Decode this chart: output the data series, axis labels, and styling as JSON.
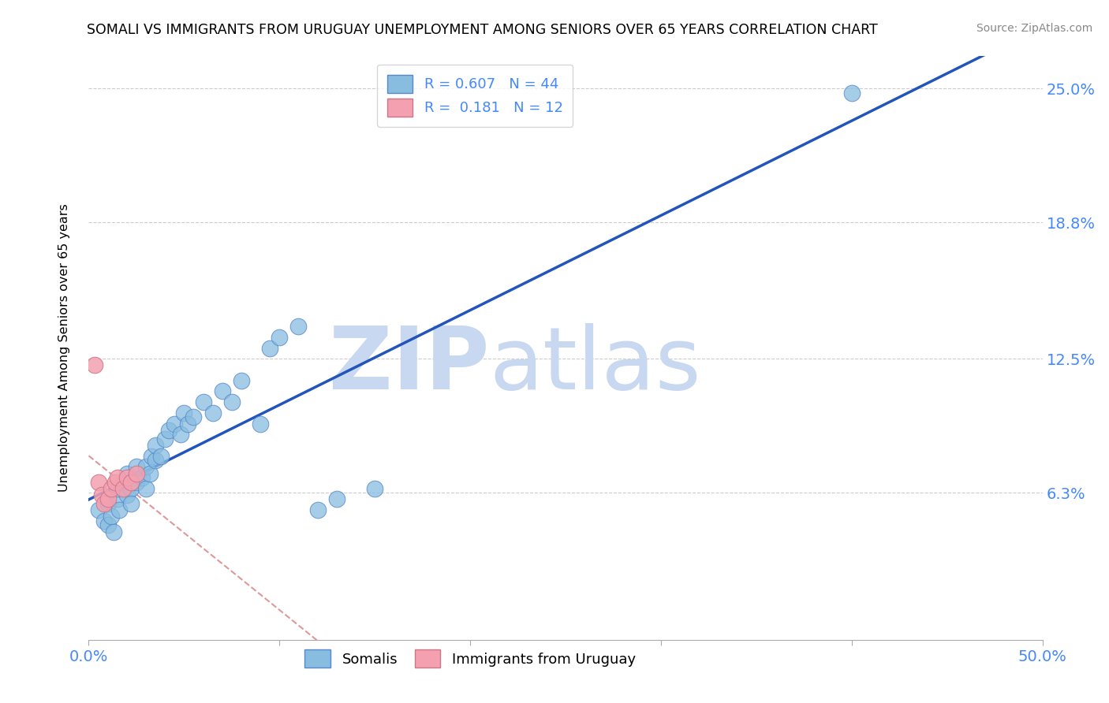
{
  "title": "SOMALI VS IMMIGRANTS FROM URUGUAY UNEMPLOYMENT AMONG SENIORS OVER 65 YEARS CORRELATION CHART",
  "source": "Source: ZipAtlas.com",
  "axis_color": "#4488ff",
  "ylabel": "Unemployment Among Seniors over 65 years",
  "xlim": [
    0.0,
    0.5
  ],
  "ylim": [
    -0.005,
    0.265
  ],
  "xtick_pos": [
    0.0,
    0.1,
    0.2,
    0.3,
    0.4,
    0.5
  ],
  "xtick_labels": [
    "0.0%",
    "",
    "",
    "",
    "",
    "50.0%"
  ],
  "ytick_values": [
    0.063,
    0.125,
    0.188,
    0.25
  ],
  "ytick_labels": [
    "6.3%",
    "12.5%",
    "18.8%",
    "25.0%"
  ],
  "grid_color": "#cccccc",
  "watermark_zip": "ZIP",
  "watermark_atlas": "atlas",
  "watermark_color": "#c8d8f0",
  "blue_color": "#89bde0",
  "pink_color": "#f4a0b0",
  "blue_edge_color": "#5588cc",
  "pink_edge_color": "#cc7788",
  "blue_line_color": "#2255bb",
  "pink_line_color": "#dd9999",
  "legend_blue_label": "R = 0.607   N = 44",
  "legend_pink_label": "R =  0.181   N = 12",
  "somali_x": [
    0.005,
    0.008,
    0.01,
    0.01,
    0.012,
    0.013,
    0.015,
    0.015,
    0.016,
    0.018,
    0.02,
    0.02,
    0.022,
    0.022,
    0.025,
    0.025,
    0.028,
    0.03,
    0.03,
    0.032,
    0.033,
    0.035,
    0.035,
    0.038,
    0.04,
    0.042,
    0.045,
    0.048,
    0.05,
    0.052,
    0.055,
    0.06,
    0.065,
    0.07,
    0.075,
    0.08,
    0.09,
    0.095,
    0.1,
    0.11,
    0.12,
    0.13,
    0.15,
    0.4
  ],
  "somali_y": [
    0.055,
    0.05,
    0.048,
    0.058,
    0.052,
    0.045,
    0.06,
    0.065,
    0.055,
    0.068,
    0.062,
    0.072,
    0.065,
    0.058,
    0.075,
    0.068,
    0.07,
    0.065,
    0.075,
    0.072,
    0.08,
    0.078,
    0.085,
    0.08,
    0.088,
    0.092,
    0.095,
    0.09,
    0.1,
    0.095,
    0.098,
    0.105,
    0.1,
    0.11,
    0.105,
    0.115,
    0.095,
    0.13,
    0.135,
    0.14,
    0.055,
    0.06,
    0.065,
    0.248
  ],
  "uruguay_x": [
    0.003,
    0.005,
    0.007,
    0.008,
    0.01,
    0.012,
    0.014,
    0.015,
    0.018,
    0.02,
    0.022,
    0.025
  ],
  "uruguay_y": [
    0.122,
    0.068,
    0.062,
    0.058,
    0.06,
    0.065,
    0.068,
    0.07,
    0.065,
    0.07,
    0.068,
    0.072
  ]
}
